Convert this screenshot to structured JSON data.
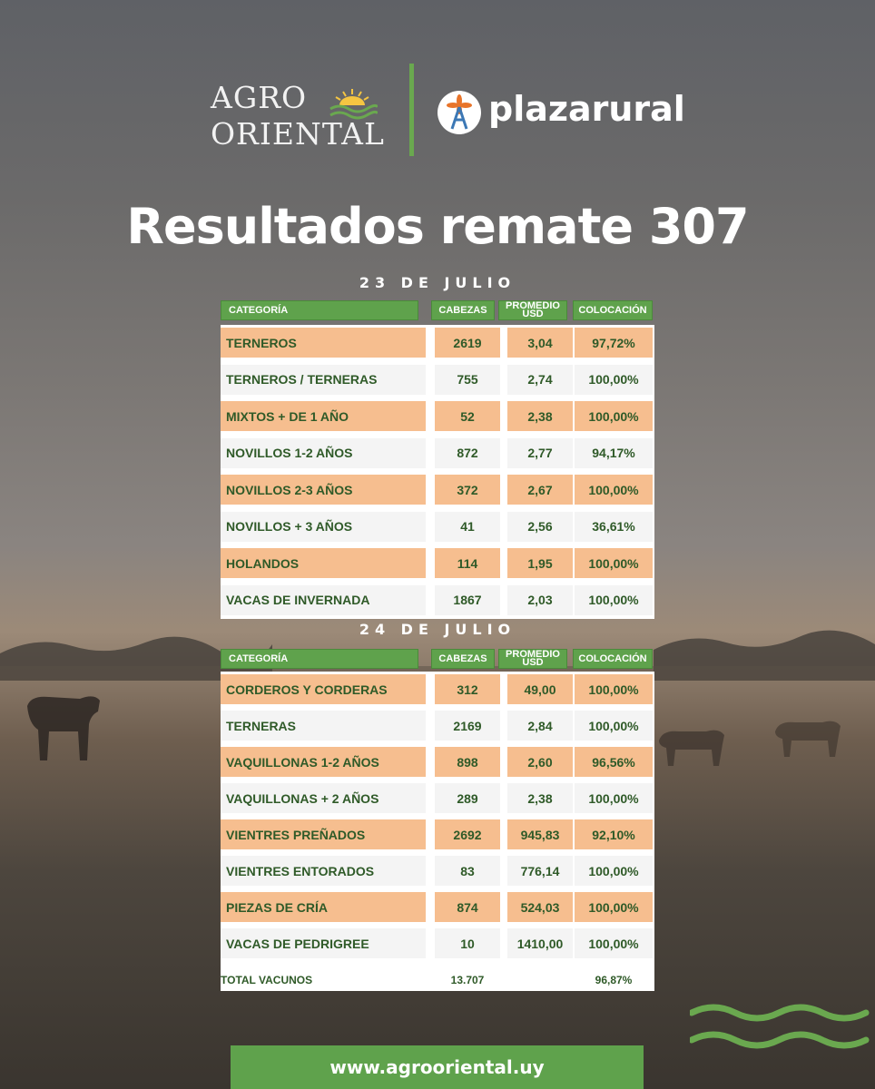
{
  "header": {
    "agro_line1": "AGRO",
    "agro_line2": "ORIENTAL",
    "plaza_name": "plazarural"
  },
  "title": "Resultados remate 307",
  "columns": [
    "CATEGORÍA",
    "CABEZAS",
    "PROMEDIO USD",
    "COLOCACIÓN"
  ],
  "section1": {
    "date": "23 DE JULIO",
    "rows": [
      {
        "categoria": "TERNEROS",
        "cabezas": "2619",
        "promedio": "3,04",
        "colocacion": "97,72%"
      },
      {
        "categoria": "TERNEROS / TERNERAS",
        "cabezas": "755",
        "promedio": "2,74",
        "colocacion": "100,00%"
      },
      {
        "categoria": "MIXTOS + DE 1 AÑO",
        "cabezas": "52",
        "promedio": "2,38",
        "colocacion": "100,00%"
      },
      {
        "categoria": "NOVILLOS 1-2 AÑOS",
        "cabezas": "872",
        "promedio": "2,77",
        "colocacion": "94,17%"
      },
      {
        "categoria": "NOVILLOS 2-3 AÑOS",
        "cabezas": "372",
        "promedio": "2,67",
        "colocacion": "100,00%"
      },
      {
        "categoria": "NOVILLOS + 3 AÑOS",
        "cabezas": "41",
        "promedio": "2,56",
        "colocacion": "36,61%"
      },
      {
        "categoria": "HOLANDOS",
        "cabezas": "114",
        "promedio": "1,95",
        "colocacion": "100,00%"
      },
      {
        "categoria": "VACAS DE INVERNADA",
        "cabezas": "1867",
        "promedio": "2,03",
        "colocacion": "100,00%"
      }
    ]
  },
  "section2": {
    "date": "24 DE JULIO",
    "rows": [
      {
        "categoria": "CORDEROS Y CORDERAS",
        "cabezas": "312",
        "promedio": "49,00",
        "colocacion": "100,00%"
      },
      {
        "categoria": "TERNERAS",
        "cabezas": "2169",
        "promedio": "2,84",
        "colocacion": "100,00%"
      },
      {
        "categoria": "VAQUILLONAS 1-2 AÑOS",
        "cabezas": "898",
        "promedio": "2,60",
        "colocacion": "96,56%"
      },
      {
        "categoria": "VAQUILLONAS + 2 AÑOS",
        "cabezas": "289",
        "promedio": "2,38",
        "colocacion": "100,00%"
      },
      {
        "categoria": "VIENTRES PREÑADOS",
        "cabezas": "2692",
        "promedio": "945,83",
        "colocacion": "92,10%"
      },
      {
        "categoria": "VIENTRES ENTORADOS",
        "cabezas": "83",
        "promedio": "776,14",
        "colocacion": "100,00%"
      },
      {
        "categoria": "PIEZAS DE CRÍA",
        "cabezas": "874",
        "promedio": "524,03",
        "colocacion": "100,00%"
      },
      {
        "categoria": "VACAS DE PEDRIGREE",
        "cabezas": "10",
        "promedio": "1410,00",
        "colocacion": "100,00%"
      }
    ],
    "total": {
      "label": "TOTAL VACUNOS",
      "cabezas": "13.707",
      "colocacion": "96,87%"
    }
  },
  "footer": {
    "url": "www.agrooriental.uy"
  },
  "colors": {
    "green": "#5fa24c",
    "peach": "#f6be8f",
    "text_green": "#2f5a28"
  }
}
